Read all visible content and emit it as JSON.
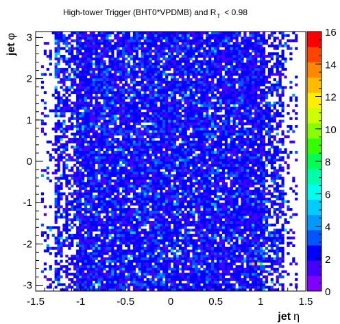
{
  "chart_data": {
    "type": "heatmap",
    "title": "High-tower Trigger (BHT0*VPDMB) and R",
    "title_subscript": "T",
    "title_suffix": "< 0.98",
    "xlabel": "jet η",
    "xlabel_prefix": "jet",
    "xlabel_symbol": "η",
    "ylabel": "jet φ",
    "ylabel_prefix": "jet",
    "ylabel_symbol": "φ",
    "xlim": [
      -1.5,
      1.5
    ],
    "ylim": [
      -3.14,
      3.14
    ],
    "x_ticks": [
      -1.5,
      -1,
      -0.5,
      0,
      0.5,
      1,
      1.5
    ],
    "x_tick_labels": [
      "-1.5",
      "-1",
      "-0.5",
      "0",
      "0.5",
      "1",
      "1.5"
    ],
    "y_ticks": [
      -3,
      -2,
      -1,
      0,
      1,
      2,
      3
    ],
    "y_tick_labels": [
      "-3",
      "-2",
      "-1",
      "0",
      "1",
      "2",
      "3"
    ],
    "z_range": [
      0,
      16
    ],
    "z_ticks": [
      0,
      2,
      4,
      6,
      8,
      10,
      12,
      14,
      16
    ],
    "z_tick_labels": [
      "0",
      "2",
      "4",
      "6",
      "8",
      "10",
      "12",
      "14",
      "16"
    ],
    "bins": {
      "nx": 100,
      "ny": 100
    },
    "occupied_eta_range": [
      -1.3,
      1.25
    ],
    "typical_counts": [
      1,
      3
    ],
    "notable_cells": [
      {
        "eta": 0.92,
        "phi": -2.5,
        "count": 13
      },
      {
        "eta": 0.97,
        "phi": -2.5,
        "count": 12
      },
      {
        "eta": 1.01,
        "phi": -2.5,
        "count": 8
      },
      {
        "eta": 0.75,
        "phi": -1.85,
        "count": 7
      },
      {
        "eta": -0.8,
        "phi": -3.0,
        "count": 6
      },
      {
        "eta": 0.0,
        "phi": -2.15,
        "count": 6
      }
    ],
    "palette": [
      "#7f00ff",
      "#4400ff",
      "#0000ff",
      "#0055ff",
      "#0099ff",
      "#00ccff",
      "#00ffee",
      "#00ffaa",
      "#00ff55",
      "#33ff00",
      "#88ff00",
      "#ccff00",
      "#ffee00",
      "#ffbb00",
      "#ff8800",
      "#ff4400",
      "#ff0000"
    ],
    "grid": false,
    "legend": "color bar on the right"
  }
}
